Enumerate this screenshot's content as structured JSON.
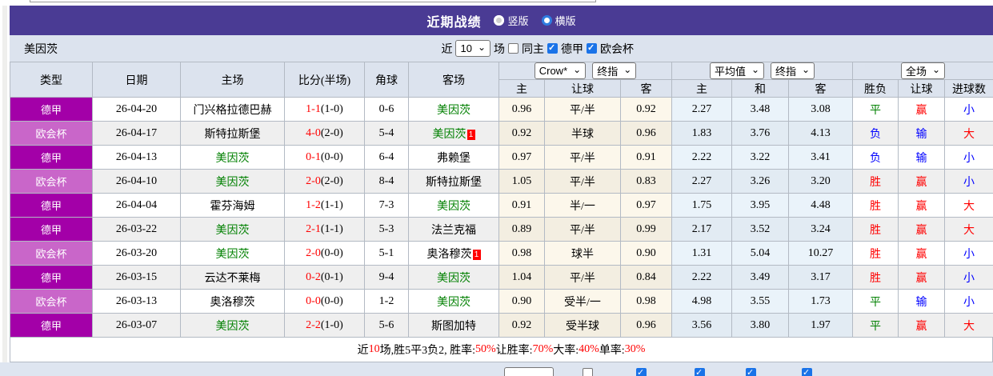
{
  "title_bar": {
    "title": "近期战绩",
    "radio_vertical_label": "竖版",
    "radio_horizontal_label": "横版"
  },
  "filter": {
    "team": "美因茨",
    "near_label": "近",
    "match_count": "10",
    "games_label": "场",
    "same_home_label": "同主",
    "league1_label": "德甲",
    "league2_label": "欧会杯"
  },
  "header": {
    "col_type": "类型",
    "col_date": "日期",
    "col_home": "主场",
    "col_score": "比分(半场)",
    "col_corner": "角球",
    "col_away": "客场",
    "select_bookmaker": "Crow*",
    "select_final1": "终指",
    "select_average": "平均值",
    "select_final2": "终指",
    "select_scope": "全场",
    "odds_home": "主",
    "odds_handicap": "让球",
    "odds_away": "客",
    "avg_home": "主",
    "avg_draw": "和",
    "avg_away": "客",
    "col_result": "胜负",
    "col_handicap_result": "让球",
    "col_goals": "进球数"
  },
  "rows": [
    {
      "league": "德甲",
      "lg": "a",
      "date": "26-04-20",
      "home": "门兴格拉德巴赫",
      "home_self": false,
      "score": "1-1",
      "half": "(1-0)",
      "corner": "0-6",
      "away": "美因茨",
      "away_self": true,
      "badge": "",
      "o1": "0.96",
      "h": "平/半",
      "o3": "0.92",
      "a1": "2.27",
      "a2": "3.48",
      "a3": "3.08",
      "r1": "平",
      "r1c": "g",
      "r2": "赢",
      "r2c": "r",
      "r3": "小",
      "r3c": "b"
    },
    {
      "league": "欧会杯",
      "lg": "b",
      "date": "26-04-17",
      "home": "斯特拉斯堡",
      "home_self": false,
      "score": "4-0",
      "half": "(2-0)",
      "corner": "5-4",
      "away": "美因茨",
      "away_self": true,
      "badge": "1",
      "o1": "0.92",
      "h": "半球",
      "o3": "0.96",
      "a1": "1.83",
      "a2": "3.76",
      "a3": "4.13",
      "r1": "负",
      "r1c": "b",
      "r2": "输",
      "r2c": "b",
      "r3": "大",
      "r3c": "r"
    },
    {
      "league": "德甲",
      "lg": "a",
      "date": "26-04-13",
      "home": "美因茨",
      "home_self": true,
      "score": "0-1",
      "half": "(0-0)",
      "corner": "6-4",
      "away": "弗赖堡",
      "away_self": false,
      "badge": "",
      "o1": "0.97",
      "h": "平/半",
      "o3": "0.91",
      "a1": "2.22",
      "a2": "3.22",
      "a3": "3.41",
      "r1": "负",
      "r1c": "b",
      "r2": "输",
      "r2c": "b",
      "r3": "小",
      "r3c": "b"
    },
    {
      "league": "欧会杯",
      "lg": "b",
      "date": "26-04-10",
      "home": "美因茨",
      "home_self": true,
      "score": "2-0",
      "half": "(2-0)",
      "corner": "8-4",
      "away": "斯特拉斯堡",
      "away_self": false,
      "badge": "",
      "o1": "1.05",
      "h": "平/半",
      "o3": "0.83",
      "a1": "2.27",
      "a2": "3.26",
      "a3": "3.20",
      "r1": "胜",
      "r1c": "r",
      "r2": "赢",
      "r2c": "r",
      "r3": "小",
      "r3c": "b"
    },
    {
      "league": "德甲",
      "lg": "a",
      "date": "26-04-04",
      "home": "霍芬海姆",
      "home_self": false,
      "score": "1-2",
      "half": "(1-1)",
      "corner": "7-3",
      "away": "美因茨",
      "away_self": true,
      "badge": "",
      "o1": "0.91",
      "h": "半/一",
      "o3": "0.97",
      "a1": "1.75",
      "a2": "3.95",
      "a3": "4.48",
      "r1": "胜",
      "r1c": "r",
      "r2": "赢",
      "r2c": "r",
      "r3": "大",
      "r3c": "r"
    },
    {
      "league": "德甲",
      "lg": "a",
      "date": "26-03-22",
      "home": "美因茨",
      "home_self": true,
      "score": "2-1",
      "half": "(1-1)",
      "corner": "5-3",
      "away": "法兰克福",
      "away_self": false,
      "badge": "",
      "o1": "0.89",
      "h": "平/半",
      "o3": "0.99",
      "a1": "2.17",
      "a2": "3.52",
      "a3": "3.24",
      "r1": "胜",
      "r1c": "r",
      "r2": "赢",
      "r2c": "r",
      "r3": "大",
      "r3c": "r"
    },
    {
      "league": "欧会杯",
      "lg": "b",
      "date": "26-03-20",
      "home": "美因茨",
      "home_self": true,
      "score": "2-0",
      "half": "(0-0)",
      "corner": "5-1",
      "away": "奥洛穆茨",
      "away_self": false,
      "badge": "1",
      "o1": "0.98",
      "h": "球半",
      "o3": "0.90",
      "a1": "1.31",
      "a2": "5.04",
      "a3": "10.27",
      "r1": "胜",
      "r1c": "r",
      "r2": "赢",
      "r2c": "r",
      "r3": "小",
      "r3c": "b"
    },
    {
      "league": "德甲",
      "lg": "a",
      "date": "26-03-15",
      "home": "云达不莱梅",
      "home_self": false,
      "score": "0-2",
      "half": "(0-1)",
      "corner": "9-4",
      "away": "美因茨",
      "away_self": true,
      "badge": "",
      "o1": "1.04",
      "h": "平/半",
      "o3": "0.84",
      "a1": "2.22",
      "a2": "3.49",
      "a3": "3.17",
      "r1": "胜",
      "r1c": "r",
      "r2": "赢",
      "r2c": "r",
      "r3": "小",
      "r3c": "b"
    },
    {
      "league": "欧会杯",
      "lg": "b",
      "date": "26-03-13",
      "home": "奥洛穆茨",
      "home_self": false,
      "score": "0-0",
      "half": "(0-0)",
      "corner": "1-2",
      "away": "美因茨",
      "away_self": true,
      "badge": "",
      "o1": "0.90",
      "h": "受半/一",
      "o3": "0.98",
      "a1": "4.98",
      "a2": "3.55",
      "a3": "1.73",
      "r1": "平",
      "r1c": "g",
      "r2": "输",
      "r2c": "b",
      "r3": "小",
      "r3c": "b"
    },
    {
      "league": "德甲",
      "lg": "a",
      "date": "26-03-07",
      "home": "美因茨",
      "home_self": true,
      "score": "2-2",
      "half": "(1-0)",
      "corner": "5-6",
      "away": "斯图加特",
      "away_self": false,
      "badge": "",
      "o1": "0.92",
      "h": "受半球",
      "o3": "0.96",
      "a1": "3.56",
      "a2": "3.80",
      "a3": "1.97",
      "r1": "平",
      "r1c": "g",
      "r2": "赢",
      "r2c": "r",
      "r3": "大",
      "r3c": "r"
    }
  ],
  "summary": {
    "parts": [
      {
        "text": "近",
        "red": false
      },
      {
        "text": "10",
        "red": true
      },
      {
        "text": "场,胜5平3负2, 胜率:",
        "red": false
      },
      {
        "text": "50%",
        "red": true
      },
      {
        "text": " 让胜率:",
        "red": false
      },
      {
        "text": "70%",
        "red": true
      },
      {
        "text": " 大率:",
        "red": false
      },
      {
        "text": "40%",
        "red": true
      },
      {
        "text": " 单率:",
        "red": false
      },
      {
        "text": "30%",
        "red": true
      }
    ]
  }
}
